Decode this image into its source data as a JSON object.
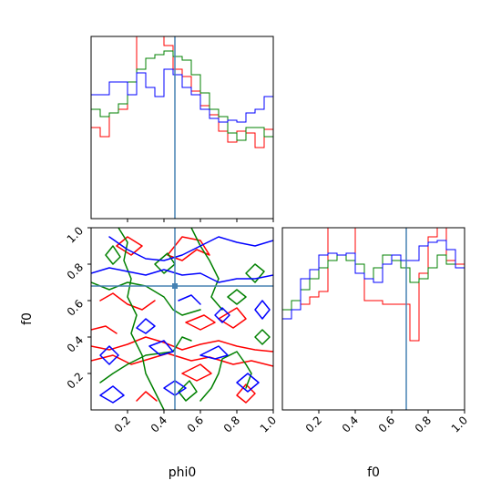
{
  "chart_data": {
    "type": "corner",
    "params": [
      "phi0",
      "f0"
    ],
    "xlabel_phi0": "phi0",
    "xlabel_f0": "f0",
    "ylabel_f0": "f0",
    "range": [
      0.0,
      1.0
    ],
    "ticks": [
      0.2,
      0.4,
      0.6,
      0.8,
      1.0
    ],
    "tick_labels": [
      "0.2",
      "0.4",
      "0.6",
      "0.8",
      "1.0"
    ],
    "truth": {
      "phi0": 0.46,
      "f0": 0.68
    },
    "colors": {
      "red": "#ff0000",
      "green": "#008000",
      "blue": "#0000ff",
      "truth": "#4682b4"
    },
    "hist_phi0": {
      "bins": 20,
      "ymax": 1.0,
      "series": [
        {
          "color": "#ff0000",
          "values": [
            0.5,
            0.45,
            0.58,
            0.6,
            0.68,
            1.0,
            1.0,
            1.0,
            0.95,
            0.82,
            0.78,
            0.7,
            0.62,
            0.57,
            0.48,
            0.42,
            0.48,
            0.47,
            0.39,
            0.49
          ]
        },
        {
          "color": "#008000",
          "values": [
            0.6,
            0.56,
            0.58,
            0.63,
            0.75,
            0.82,
            0.88,
            0.9,
            0.92,
            0.89,
            0.87,
            0.79,
            0.69,
            0.6,
            0.56,
            0.47,
            0.43,
            0.5,
            0.5,
            0.45
          ]
        },
        {
          "color": "#0000ff",
          "values": [
            0.68,
            0.68,
            0.75,
            0.75,
            0.68,
            0.8,
            0.72,
            0.67,
            0.82,
            0.79,
            0.72,
            0.68,
            0.6,
            0.55,
            0.53,
            0.54,
            0.53,
            0.58,
            0.6,
            0.67
          ]
        }
      ]
    },
    "hist_f0": {
      "bins": 20,
      "ymax": 1.0,
      "series": [
        {
          "color": "#ff0000",
          "values": [
            0.5,
            0.55,
            0.58,
            0.62,
            0.65,
            1.0,
            1.0,
            1.0,
            0.8,
            0.6,
            0.6,
            0.58,
            0.58,
            0.58,
            0.38,
            0.75,
            0.95,
            1.0,
            0.82,
            0.8
          ]
        },
        {
          "color": "#008000",
          "values": [
            0.55,
            0.6,
            0.66,
            0.72,
            0.78,
            0.82,
            0.85,
            0.82,
            0.8,
            0.72,
            0.78,
            0.85,
            0.82,
            0.78,
            0.7,
            0.72,
            0.78,
            0.85,
            0.8,
            0.78
          ]
        },
        {
          "color": "#0000ff",
          "values": [
            0.5,
            0.55,
            0.72,
            0.77,
            0.85,
            0.86,
            0.85,
            0.86,
            0.75,
            0.72,
            0.7,
            0.8,
            0.85,
            0.82,
            0.82,
            0.9,
            0.92,
            0.93,
            0.88,
            0.78
          ]
        }
      ]
    },
    "contours": [
      {
        "color": "#ff0000",
        "paths": [
          [
            [
              0.0,
              0.35
            ],
            [
              0.1,
              0.33
            ],
            [
              0.2,
              0.36
            ],
            [
              0.3,
              0.4
            ],
            [
              0.4,
              0.37
            ],
            [
              0.5,
              0.33
            ],
            [
              0.6,
              0.36
            ],
            [
              0.7,
              0.38
            ],
            [
              0.8,
              0.35
            ],
            [
              0.9,
              0.33
            ],
            [
              1.0,
              0.32
            ]
          ],
          [
            [
              0.0,
              0.27
            ],
            [
              0.12,
              0.3
            ],
            [
              0.22,
              0.25
            ],
            [
              0.32,
              0.28
            ],
            [
              0.42,
              0.31
            ],
            [
              0.55,
              0.27
            ],
            [
              0.65,
              0.29
            ],
            [
              0.78,
              0.25
            ],
            [
              0.88,
              0.27
            ],
            [
              1.0,
              0.24
            ]
          ],
          [
            [
              0.05,
              0.6
            ],
            [
              0.12,
              0.64
            ],
            [
              0.2,
              0.58
            ],
            [
              0.28,
              0.55
            ],
            [
              0.35,
              0.6
            ]
          ],
          [
            [
              0.42,
              0.85
            ],
            [
              0.5,
              0.82
            ],
            [
              0.58,
              0.88
            ],
            [
              0.65,
              0.85
            ],
            [
              0.6,
              0.93
            ],
            [
              0.5,
              0.95
            ],
            [
              0.42,
              0.85
            ]
          ],
          [
            [
              0.14,
              0.9
            ],
            [
              0.2,
              0.95
            ],
            [
              0.28,
              0.9
            ],
            [
              0.22,
              0.85
            ],
            [
              0.14,
              0.9
            ]
          ],
          [
            [
              0.7,
              0.5
            ],
            [
              0.78,
              0.45
            ],
            [
              0.85,
              0.5
            ],
            [
              0.8,
              0.56
            ],
            [
              0.7,
              0.5
            ]
          ],
          [
            [
              0.5,
              0.2
            ],
            [
              0.58,
              0.16
            ],
            [
              0.66,
              0.2
            ],
            [
              0.6,
              0.25
            ],
            [
              0.5,
              0.2
            ]
          ],
          [
            [
              0.25,
              0.05
            ],
            [
              0.3,
              0.1
            ],
            [
              0.36,
              0.05
            ]
          ],
          [
            [
              0.8,
              0.08
            ],
            [
              0.85,
              0.14
            ],
            [
              0.9,
              0.09
            ],
            [
              0.85,
              0.04
            ],
            [
              0.8,
              0.08
            ]
          ],
          [
            [
              0.52,
              0.48
            ],
            [
              0.6,
              0.44
            ],
            [
              0.68,
              0.48
            ],
            [
              0.62,
              0.52
            ],
            [
              0.52,
              0.48
            ]
          ],
          [
            [
              0.0,
              0.44
            ],
            [
              0.08,
              0.46
            ],
            [
              0.14,
              0.42
            ]
          ]
        ]
      },
      {
        "color": "#008000",
        "paths": [
          [
            [
              0.15,
              1.0
            ],
            [
              0.2,
              0.92
            ],
            [
              0.18,
              0.82
            ],
            [
              0.22,
              0.72
            ],
            [
              0.2,
              0.62
            ],
            [
              0.25,
              0.52
            ],
            [
              0.22,
              0.42
            ],
            [
              0.28,
              0.3
            ],
            [
              0.3,
              0.2
            ],
            [
              0.35,
              0.1
            ],
            [
              0.4,
              0.0
            ]
          ],
          [
            [
              0.55,
              1.0
            ],
            [
              0.6,
              0.9
            ],
            [
              0.65,
              0.82
            ],
            [
              0.7,
              0.72
            ],
            [
              0.66,
              0.62
            ],
            [
              0.72,
              0.55
            ]
          ],
          [
            [
              0.0,
              0.7
            ],
            [
              0.1,
              0.66
            ],
            [
              0.2,
              0.7
            ],
            [
              0.3,
              0.68
            ],
            [
              0.4,
              0.62
            ],
            [
              0.45,
              0.55
            ],
            [
              0.5,
              0.52
            ],
            [
              0.6,
              0.55
            ]
          ],
          [
            [
              0.05,
              0.15
            ],
            [
              0.12,
              0.2
            ],
            [
              0.2,
              0.25
            ],
            [
              0.3,
              0.3
            ],
            [
              0.45,
              0.32
            ],
            [
              0.5,
              0.4
            ],
            [
              0.55,
              0.38
            ]
          ],
          [
            [
              0.6,
              0.05
            ],
            [
              0.66,
              0.12
            ],
            [
              0.7,
              0.2
            ],
            [
              0.72,
              0.28
            ],
            [
              0.8,
              0.32
            ],
            [
              0.85,
              0.25
            ],
            [
              0.88,
              0.2
            ],
            [
              0.85,
              0.12
            ]
          ],
          [
            [
              0.35,
              0.8
            ],
            [
              0.4,
              0.75
            ],
            [
              0.46,
              0.8
            ],
            [
              0.42,
              0.86
            ],
            [
              0.35,
              0.8
            ]
          ],
          [
            [
              0.08,
              0.85
            ],
            [
              0.12,
              0.8
            ],
            [
              0.16,
              0.84
            ],
            [
              0.12,
              0.9
            ],
            [
              0.08,
              0.85
            ]
          ],
          [
            [
              0.85,
              0.75
            ],
            [
              0.9,
              0.8
            ],
            [
              0.95,
              0.76
            ],
            [
              0.9,
              0.7
            ],
            [
              0.85,
              0.75
            ]
          ],
          [
            [
              0.75,
              0.62
            ],
            [
              0.8,
              0.58
            ],
            [
              0.85,
              0.62
            ],
            [
              0.8,
              0.66
            ],
            [
              0.75,
              0.62
            ]
          ],
          [
            [
              0.48,
              0.1
            ],
            [
              0.52,
              0.05
            ],
            [
              0.58,
              0.1
            ],
            [
              0.54,
              0.16
            ],
            [
              0.48,
              0.1
            ]
          ],
          [
            [
              0.9,
              0.4
            ],
            [
              0.94,
              0.36
            ],
            [
              0.98,
              0.4
            ],
            [
              0.94,
              0.44
            ],
            [
              0.9,
              0.4
            ]
          ]
        ]
      },
      {
        "color": "#0000ff",
        "paths": [
          [
            [
              0.1,
              0.95
            ],
            [
              0.2,
              0.88
            ],
            [
              0.3,
              0.83
            ],
            [
              0.4,
              0.82
            ],
            [
              0.5,
              0.85
            ],
            [
              0.6,
              0.9
            ],
            [
              0.7,
              0.95
            ],
            [
              0.8,
              0.92
            ],
            [
              0.9,
              0.9
            ],
            [
              1.0,
              0.93
            ]
          ],
          [
            [
              0.0,
              0.75
            ],
            [
              0.1,
              0.78
            ],
            [
              0.2,
              0.76
            ],
            [
              0.3,
              0.74
            ],
            [
              0.4,
              0.77
            ],
            [
              0.5,
              0.74
            ],
            [
              0.6,
              0.75
            ],
            [
              0.7,
              0.7
            ],
            [
              0.8,
              0.72
            ],
            [
              0.9,
              0.72
            ],
            [
              1.0,
              0.74
            ]
          ],
          [
            [
              0.05,
              0.3
            ],
            [
              0.1,
              0.25
            ],
            [
              0.15,
              0.3
            ],
            [
              0.1,
              0.35
            ],
            [
              0.05,
              0.3
            ]
          ],
          [
            [
              0.32,
              0.35
            ],
            [
              0.38,
              0.3
            ],
            [
              0.45,
              0.32
            ],
            [
              0.4,
              0.38
            ],
            [
              0.32,
              0.35
            ]
          ],
          [
            [
              0.6,
              0.3
            ],
            [
              0.68,
              0.28
            ],
            [
              0.75,
              0.3
            ],
            [
              0.7,
              0.35
            ],
            [
              0.6,
              0.3
            ]
          ],
          [
            [
              0.8,
              0.15
            ],
            [
              0.86,
              0.1
            ],
            [
              0.92,
              0.15
            ],
            [
              0.86,
              0.2
            ],
            [
              0.8,
              0.15
            ]
          ],
          [
            [
              0.05,
              0.08
            ],
            [
              0.12,
              0.04
            ],
            [
              0.18,
              0.08
            ],
            [
              0.12,
              0.13
            ],
            [
              0.05,
              0.08
            ]
          ],
          [
            [
              0.4,
              0.12
            ],
            [
              0.46,
              0.08
            ],
            [
              0.52,
              0.12
            ],
            [
              0.46,
              0.16
            ],
            [
              0.4,
              0.12
            ]
          ],
          [
            [
              0.25,
              0.45
            ],
            [
              0.3,
              0.5
            ],
            [
              0.35,
              0.46
            ],
            [
              0.3,
              0.42
            ],
            [
              0.25,
              0.45
            ]
          ],
          [
            [
              0.68,
              0.52
            ],
            [
              0.72,
              0.48
            ],
            [
              0.76,
              0.52
            ],
            [
              0.72,
              0.56
            ],
            [
              0.68,
              0.52
            ]
          ],
          [
            [
              0.48,
              0.6
            ],
            [
              0.55,
              0.63
            ],
            [
              0.6,
              0.58
            ]
          ],
          [
            [
              0.9,
              0.55
            ],
            [
              0.94,
              0.5
            ],
            [
              0.98,
              0.55
            ],
            [
              0.94,
              0.6
            ],
            [
              0.9,
              0.55
            ]
          ]
        ]
      }
    ]
  }
}
